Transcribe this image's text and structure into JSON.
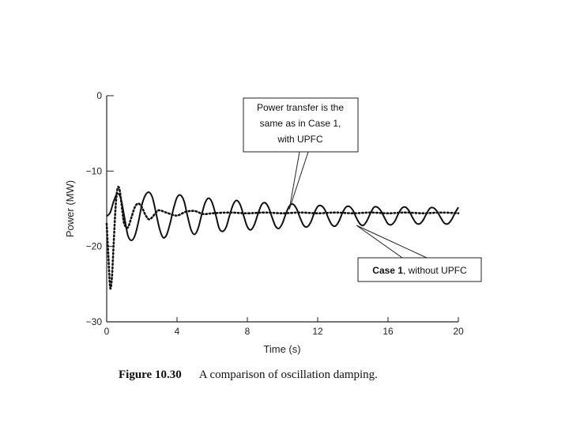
{
  "chart_data": {
    "type": "line",
    "title": "",
    "xlabel": "Time (s)",
    "ylabel": "Power (MW)",
    "xlim": [
      0,
      20
    ],
    "ylim": [
      -30,
      0
    ],
    "xticks": [
      0,
      4,
      8,
      12,
      16,
      20
    ],
    "yticks": [
      0,
      -10,
      -20,
      -30
    ],
    "grid": false,
    "series": [
      {
        "name": "Case 1, without UPFC",
        "style": "solid",
        "x": [
          0.0,
          0.2,
          0.4,
          0.6,
          0.8,
          1.0,
          1.2,
          1.4,
          1.6,
          1.8,
          2.0,
          2.2,
          2.4,
          2.6,
          2.8,
          3.0,
          3.2,
          3.4,
          3.6,
          3.8,
          4.0,
          4.2,
          4.4,
          4.6,
          4.8,
          5.0,
          5.2,
          5.4,
          5.6,
          5.8,
          6.0,
          6.2,
          6.4,
          6.6,
          6.8,
          7.0,
          7.2,
          7.4,
          7.6,
          7.8,
          8.0,
          8.2,
          8.4,
          8.6,
          8.8,
          9.0,
          9.2,
          9.4,
          9.6,
          9.8,
          10.0,
          10.2,
          10.4,
          10.6,
          10.8,
          11.0,
          11.2,
          11.4,
          11.6,
          11.8,
          12.0,
          12.2,
          12.4,
          12.6,
          12.8,
          13.0,
          13.2,
          13.4,
          13.6,
          13.8,
          14.0,
          14.2,
          14.4,
          14.6,
          14.8,
          15.0,
          15.2,
          15.4,
          15.6,
          15.8,
          16.0,
          16.2,
          16.4,
          16.6,
          16.8,
          17.0,
          17.2,
          17.4,
          17.6,
          17.8,
          18.0,
          18.2,
          18.4,
          18.6,
          18.8,
          19.0,
          19.2,
          19.4,
          19.6,
          19.8,
          20.0
        ],
        "values": [
          -16.0,
          -15.5,
          -14.0,
          -13.0,
          -13.6,
          -16.0,
          -18.5,
          -19.2,
          -18.6,
          -16.8,
          -14.5,
          -13.2,
          -12.8,
          -13.5,
          -15.5,
          -17.6,
          -18.8,
          -18.5,
          -17.0,
          -15.0,
          -13.5,
          -13.2,
          -14.0,
          -16.0,
          -17.8,
          -18.4,
          -17.6,
          -15.8,
          -14.2,
          -13.6,
          -14.2,
          -15.8,
          -17.6,
          -18.0,
          -17.4,
          -15.8,
          -14.4,
          -13.9,
          -14.5,
          -16.0,
          -17.4,
          -17.8,
          -17.1,
          -15.7,
          -14.5,
          -14.2,
          -14.8,
          -16.1,
          -17.3,
          -17.6,
          -16.9,
          -15.6,
          -14.6,
          -14.4,
          -15.0,
          -16.2,
          -17.2,
          -17.4,
          -16.8,
          -15.6,
          -14.7,
          -14.6,
          -15.1,
          -16.2,
          -17.1,
          -17.3,
          -16.7,
          -15.6,
          -14.8,
          -14.7,
          -15.2,
          -16.2,
          -17.0,
          -17.2,
          -16.6,
          -15.6,
          -14.8,
          -14.8,
          -15.3,
          -16.2,
          -17.0,
          -17.1,
          -16.6,
          -15.6,
          -14.9,
          -14.8,
          -15.3,
          -16.2,
          -16.9,
          -17.0,
          -16.5,
          -15.6,
          -14.9,
          -14.9,
          -15.4,
          -16.2,
          -16.9,
          -17.0,
          -16.5,
          -15.6,
          -14.8
        ]
      },
      {
        "name": "Power transfer is the same as in Case 1, with UPFC",
        "style": "dotted",
        "x": [
          0.0,
          0.1,
          0.2,
          0.3,
          0.4,
          0.5,
          0.6,
          0.7,
          0.8,
          0.9,
          1.0,
          1.2,
          1.4,
          1.6,
          1.8,
          2.0,
          2.2,
          2.4,
          2.6,
          2.8,
          3.0,
          3.5,
          4.0,
          4.5,
          5.0,
          5.5,
          6.0,
          7.0,
          8.0,
          9.0,
          10.0,
          11.0,
          12.0,
          13.0,
          14.0,
          15.0,
          16.0,
          17.0,
          18.0,
          19.0,
          20.0
        ],
        "values": [
          -17.0,
          -21.5,
          -25.5,
          -24.0,
          -19.5,
          -15.0,
          -12.5,
          -12.2,
          -13.5,
          -15.5,
          -17.0,
          -17.5,
          -16.2,
          -14.8,
          -14.3,
          -14.8,
          -15.8,
          -16.4,
          -16.1,
          -15.5,
          -15.2,
          -15.6,
          -15.9,
          -15.4,
          -15.3,
          -15.7,
          -15.6,
          -15.5,
          -15.6,
          -15.5,
          -15.6,
          -15.5,
          -15.6,
          -15.5,
          -15.6,
          -15.5,
          -15.6,
          -15.5,
          -15.6,
          -15.5,
          -15.6
        ]
      }
    ],
    "annotations": [
      {
        "lines": [
          "Power transfer is the",
          "same as in Case 1,",
          "with UPFC"
        ],
        "target_series": 1,
        "arrow_to": [
          10.5,
          -15.6
        ]
      },
      {
        "bold_prefix": "Case 1",
        "rest": ", without UPFC",
        "target_series": 0,
        "arrow_to": [
          14.2,
          -16.9
        ]
      }
    ]
  },
  "caption": {
    "figure_label": "Figure 10.30",
    "text": "A comparison of oscillation damping."
  }
}
